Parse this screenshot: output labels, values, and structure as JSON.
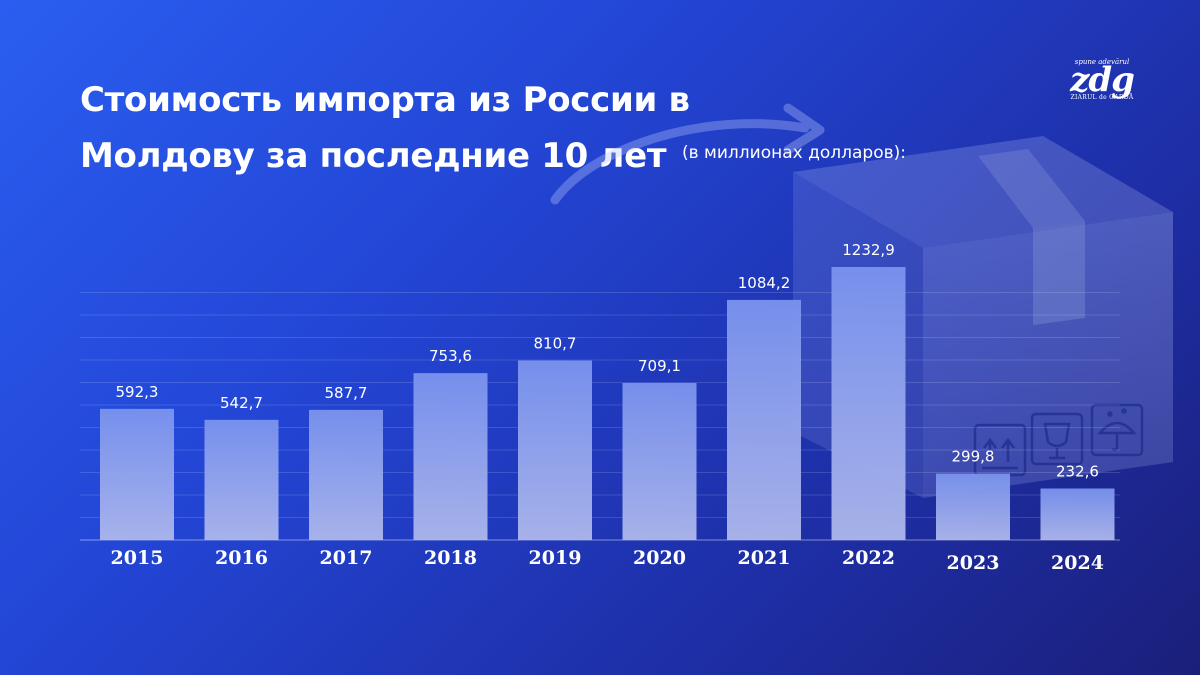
{
  "header": {
    "title_line1": "Стоимость импорта из России в",
    "title_line2": "Молдову за последние 10 лет",
    "subtitle": "(в миллионах долларов):"
  },
  "logo": {
    "top_text": "spune adevărul",
    "main_text": "zdg",
    "bottom_text": "ZIARUL de GARDĂ"
  },
  "colors": {
    "background_start": "#2a5ef0",
    "background_end": "#1a1f7a",
    "bar_top": "#7a93ee",
    "bar_bottom": "#aeb8ec",
    "text": "#ffffff"
  },
  "chart_data": {
    "type": "bar",
    "categories": [
      "2015",
      "2016",
      "2017",
      "2018",
      "2019",
      "2020",
      "2021",
      "2022",
      "2023",
      "2024"
    ],
    "values": [
      592.3,
      542.7,
      587.7,
      753.6,
      810.7,
      709.1,
      1084.2,
      1232.9,
      299.8,
      232.6
    ],
    "value_labels": [
      "592,3",
      "542,7",
      "587,7",
      "753,6",
      "810,7",
      "709,1",
      "1084,2",
      "1232,9",
      "299,8",
      "232,6"
    ],
    "title": "Стоимость импорта из России в Молдову за последние 10 лет",
    "subtitle": "(в миллионах долларов):",
    "xlabel": "",
    "ylabel": "",
    "ylim": [
      0,
      1232.9
    ],
    "grid": true,
    "legend": "none"
  }
}
